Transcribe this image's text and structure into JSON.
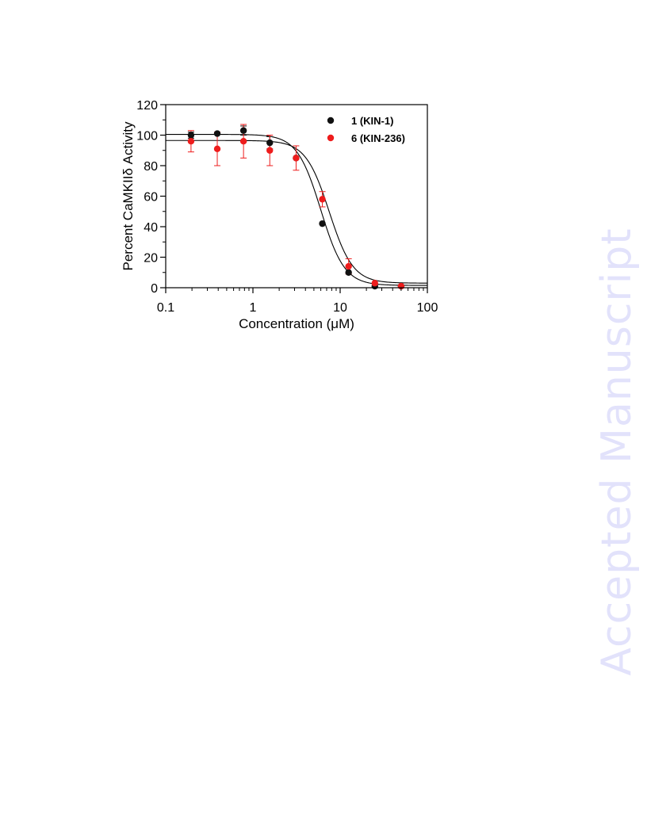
{
  "watermark": "Accepted Manuscript",
  "colors": {
    "series1": "#111111",
    "series2": "#ee1c1c",
    "axis": "#000000",
    "fit": "#000000"
  },
  "chart_data": {
    "type": "scatter",
    "xscale": "log",
    "xlabel": "Concentration (μM)",
    "ylabel": "Percent CaMKIIδ Activity",
    "xlim": [
      0.1,
      100
    ],
    "ylim": [
      0,
      120
    ],
    "xticks": [
      0.1,
      1,
      10,
      100
    ],
    "xtick_labels": [
      "0.1",
      "1",
      "10",
      "100"
    ],
    "yticks": [
      0,
      20,
      40,
      60,
      80,
      100,
      120
    ],
    "ytick_labels": [
      "0",
      "20",
      "40",
      "60",
      "80",
      "100",
      "120"
    ],
    "grid": false,
    "legend_position": "top-right",
    "series": [
      {
        "name": "1 (KIN-1)",
        "color": "#111111",
        "x": [
          0.195,
          0.39,
          0.78,
          1.56,
          3.125,
          6.25,
          12.5,
          25,
          50
        ],
        "y": [
          100,
          101,
          103,
          95,
          85,
          42,
          10,
          1,
          1
        ],
        "err": [
          2,
          0,
          3,
          4,
          0,
          0,
          0,
          0,
          0
        ],
        "fit": {
          "top": 100.5,
          "bottom": 1.5,
          "ic50": 6.0,
          "hill": 3.2
        }
      },
      {
        "name": "6 (KIN-236)",
        "color": "#ee1c1c",
        "x": [
          0.195,
          0.39,
          0.78,
          1.56,
          3.125,
          6.25,
          12.5,
          25,
          50
        ],
        "y": [
          96,
          91,
          96,
          90,
          85,
          58,
          14,
          3,
          1
        ],
        "err": [
          7,
          11,
          11,
          10,
          8,
          5,
          5,
          0,
          0
        ],
        "fit": {
          "top": 96.5,
          "bottom": 3,
          "ic50": 7.5,
          "hill": 3.2
        }
      }
    ]
  }
}
